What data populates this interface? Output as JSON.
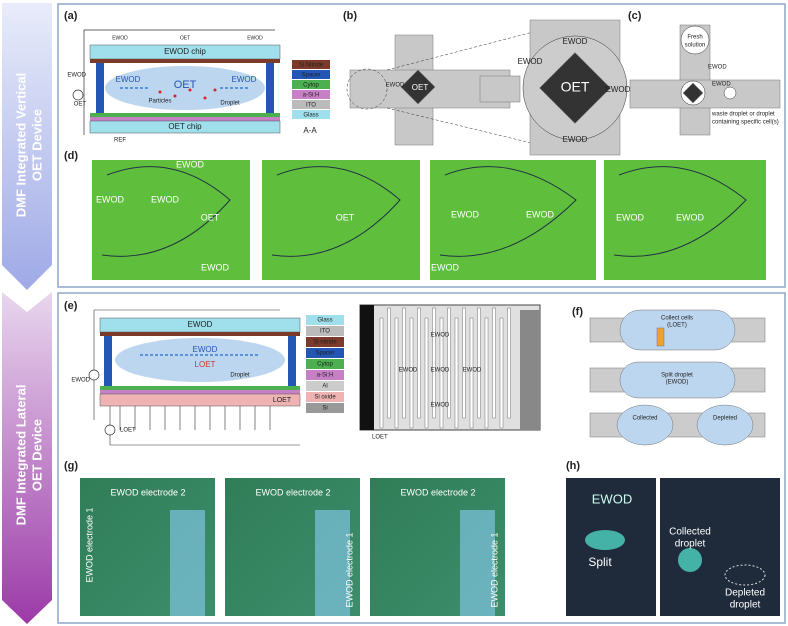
{
  "banners": [
    {
      "lines": [
        "DMF Integrated Vertical",
        "OET Device"
      ]
    },
    {
      "lines": [
        "DMF Integrated Lateral",
        "OET Device"
      ]
    }
  ],
  "panel_a": {
    "label": "(a)",
    "chip_top": "EWOD chip",
    "chip_bottom": "OET chip",
    "side_ewod": "EWOD",
    "side_oet": "OET",
    "ewod_left": "EWOD",
    "ewod_right": "EWOD",
    "oet": "OET",
    "small_left": "EWOD",
    "small_mid": "OET",
    "small_right": "EWOD",
    "particles": "Particles",
    "droplet": "Droplet",
    "ref": "REF",
    "layers": [
      "Si Nitride",
      "Spacer",
      "Cytop",
      "a-Si:H",
      "ITO",
      "Glass"
    ],
    "section": "A-A"
  },
  "panel_b": {
    "label": "(b)",
    "ewod": "EWOD",
    "oet": "OET",
    "zoom_ewod": [
      "EWOD",
      "EWOD",
      "EWOD",
      "EWOD"
    ],
    "zoom_oet": "OET"
  },
  "panel_c": {
    "label": "(c)",
    "fresh": [
      "Fresh",
      "solution"
    ],
    "ewod_top": "EWOD",
    "ewod_right": "EWOD",
    "waste": [
      "waste droplet or droplet",
      "containing specific cell(s)"
    ]
  },
  "panel_d": {
    "label": "(d)",
    "images": [
      [
        "EWOD",
        "EWOD",
        "EWOD",
        "OET",
        "EWOD"
      ],
      [
        "OET"
      ],
      [
        "EWOD",
        "EWOD",
        "EWOD"
      ],
      [
        "EWOD",
        "EWOD"
      ]
    ]
  },
  "panel_e": {
    "label": "(e)",
    "top": "EWOD",
    "inner_ewod": "EWOD",
    "inner_loet": "LOET",
    "droplet": "Droplet",
    "side_ewod": "EWOD",
    "side_loet": "LOET",
    "bottom_loet": "LOET",
    "layers": [
      "Glass",
      "ITO",
      "Si nitride",
      "Spacer",
      "Cytop",
      "a-Si:H",
      "Al",
      "Si oxide",
      "Si"
    ],
    "electrodes": [
      "EWOD",
      "EWOD",
      "EWOD",
      "EWOD",
      "EWOD"
    ],
    "electrode_loet": "LOET"
  },
  "panel_f": {
    "label": "(f)",
    "collect": [
      "Collect cells",
      "(LOET)"
    ],
    "split": [
      "Split droplet",
      "(EWOD)"
    ],
    "collected": "Collected",
    "depleted": "Depleted"
  },
  "panel_g": {
    "label": "(g)",
    "images": [
      [
        "EWOD electrode 2",
        "EWOD electrode 1"
      ],
      [
        "EWOD electrode 2",
        "EWOD electrode 1"
      ],
      [
        "EWOD electrode 2",
        "EWOD electrode 1"
      ]
    ]
  },
  "panel_h": {
    "label": "(h)",
    "ewod": "EWOD",
    "split": "Split",
    "collected": [
      "Collected",
      "droplet"
    ],
    "depleted": [
      "Depleted",
      "droplet"
    ]
  }
}
